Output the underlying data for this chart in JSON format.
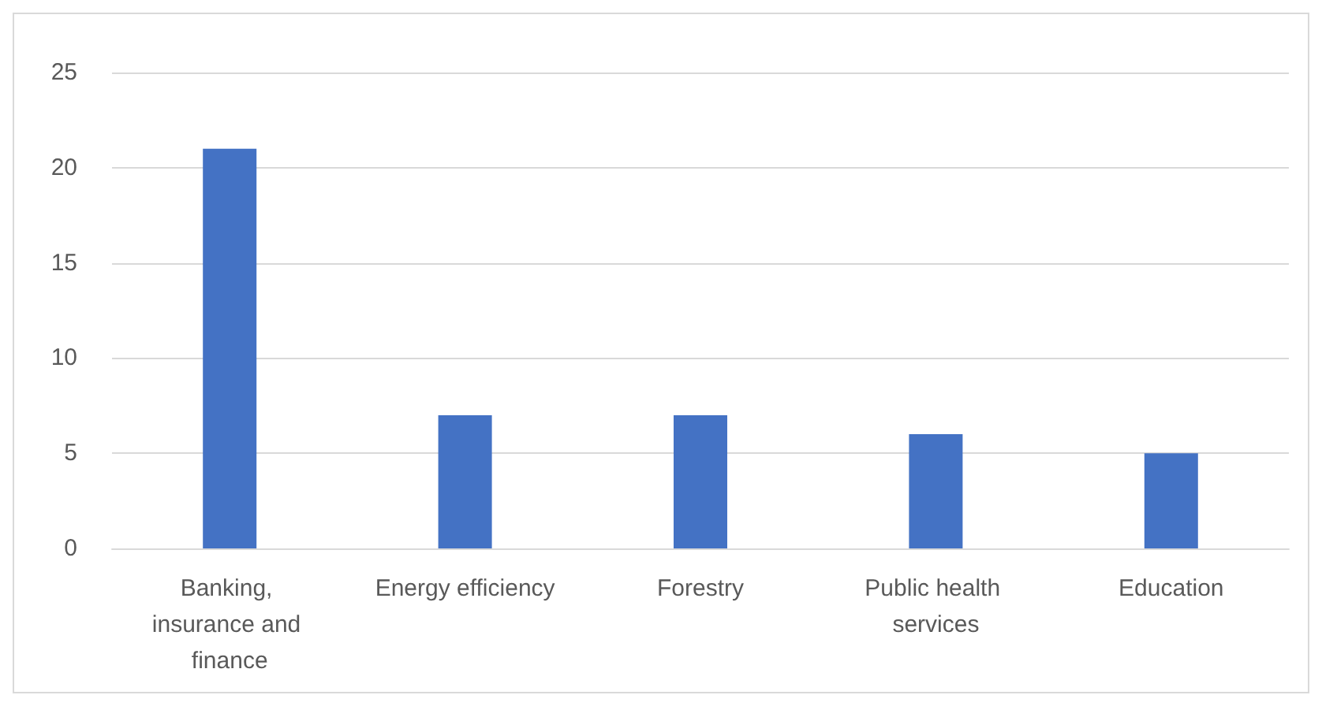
{
  "chart_data": {
    "type": "bar",
    "categories": [
      "Banking, insurance and finance",
      "Energy efficiency",
      "Forestry",
      "Public health services",
      "Education"
    ],
    "values": [
      21,
      7,
      7,
      6,
      5
    ],
    "color": "#4472c4",
    "ylim": [
      0,
      25
    ],
    "yticks": [
      0,
      5,
      10,
      15,
      20,
      25
    ],
    "grid": "y"
  }
}
